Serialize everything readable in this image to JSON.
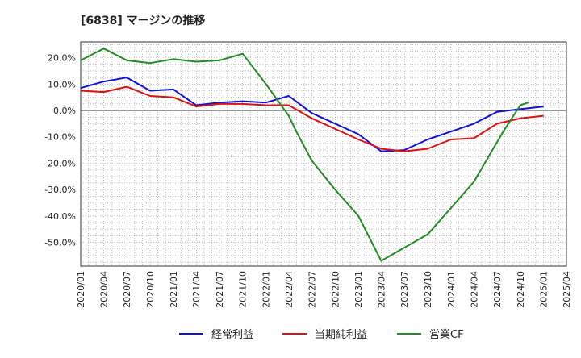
{
  "chart_data": {
    "type": "line",
    "title": "[6838]  マージンの推移",
    "xlabel": "",
    "ylabel": "",
    "x": [
      "2020/01",
      "2020/04",
      "2020/07",
      "2020/10",
      "2021/01",
      "2021/04",
      "2021/07",
      "2021/10",
      "2022/01",
      "2022/04",
      "2022/07",
      "2022/10",
      "2023/01",
      "2023/04",
      "2023/07",
      "2023/10",
      "2024/01",
      "2024/04",
      "2024/07",
      "2024/10",
      "2025/01"
    ],
    "x_tick_labels": [
      "2020/01",
      "2020/04",
      "2020/07",
      "2020/10",
      "2021/01",
      "2021/04",
      "2021/07",
      "2021/10",
      "2022/01",
      "2022/04",
      "2022/07",
      "2022/10",
      "2023/01",
      "2023/04",
      "2023/07",
      "2023/10",
      "2024/01",
      "2024/04",
      "2024/07",
      "2024/10",
      "2025/01",
      "2025/04"
    ],
    "y_tick_values": [
      20,
      10,
      0,
      -10,
      -20,
      -30,
      -40,
      -50
    ],
    "y_tick_labels": [
      "20.0%",
      "10.0%",
      "0.0%",
      "-10.0%",
      "-20.0%",
      "-30.0%",
      "-40.0%",
      "-50.0%"
    ],
    "ylim": [
      -59,
      26
    ],
    "grid": true,
    "legend_position": "bottom",
    "series": [
      {
        "name": "経常利益",
        "color": "#1111dd",
        "values": [
          8.5,
          11.0,
          12.5,
          7.5,
          8.0,
          2.0,
          3.0,
          3.5,
          3.0,
          5.5,
          -1.0,
          -5.0,
          -9.0,
          -15.5,
          -15.0,
          -11.0,
          -8.0,
          -5.0,
          -0.5,
          0.5,
          1.5
        ]
      },
      {
        "name": "当期純利益",
        "color": "#dd1111",
        "values": [
          7.5,
          7.0,
          9.0,
          5.5,
          5.0,
          1.5,
          2.5,
          2.5,
          2.0,
          2.0,
          -3.0,
          -7.0,
          -11.0,
          -14.5,
          -15.5,
          -14.5,
          -11.0,
          -10.5,
          -5.0,
          -3.0,
          -2.0
        ]
      },
      {
        "name": "営業CF",
        "color": "#228b22",
        "x": [
          "2020/01",
          "2020/04",
          "2020/07",
          "2020/10",
          "2021/01",
          "2021/04",
          "2021/07",
          "2021/10",
          "2022/01",
          "2022/04",
          "2022/05",
          "2022/07",
          "2022/10",
          "2023/01",
          "2023/04",
          "2023/07",
          "2023/10",
          "2024/01",
          "2024/04",
          "2024/07",
          "2024/08",
          "2024/10",
          "2024/11"
        ],
        "values": [
          19.0,
          23.5,
          19.0,
          18.0,
          19.5,
          18.5,
          19.0,
          21.5,
          10.0,
          -2.0,
          -8.0,
          -19.0,
          -30.0,
          -40.0,
          -57.0,
          -52.0,
          -47.0,
          -37.0,
          -27.0,
          -12.0,
          -7.0,
          2.0,
          3.0
        ]
      }
    ]
  }
}
